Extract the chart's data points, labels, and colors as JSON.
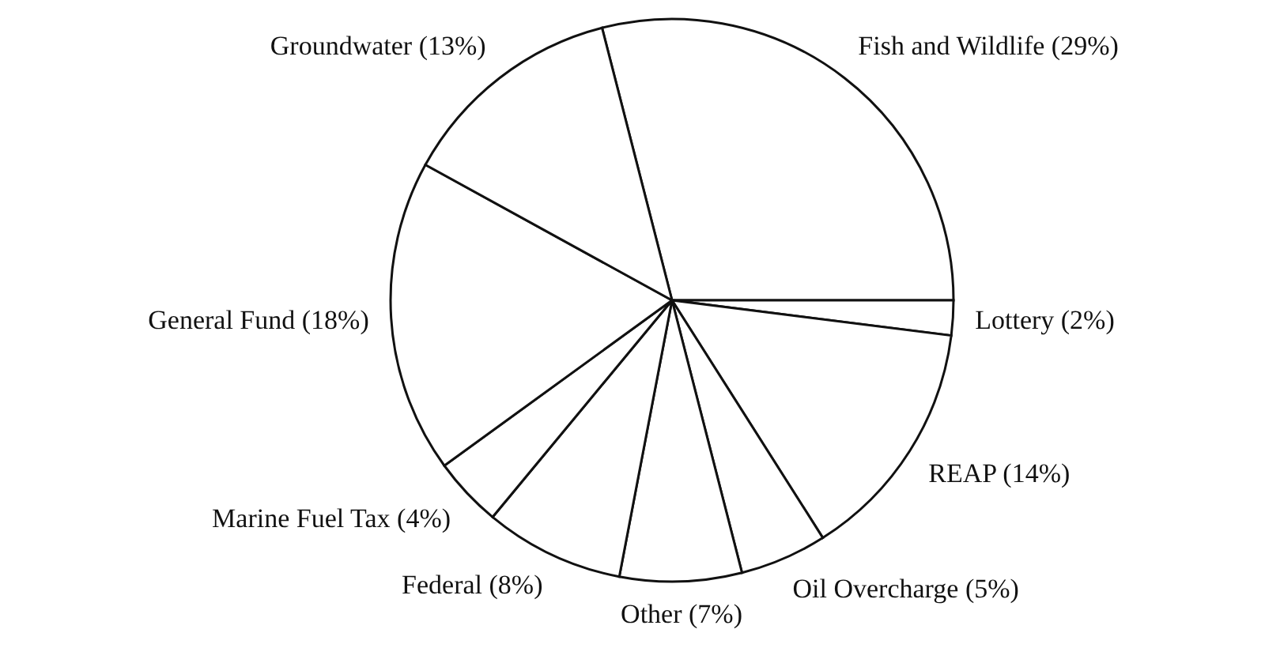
{
  "chart_data": {
    "type": "pie",
    "categories": [
      "Fish and Wildlife (29%)",
      "Lottery (2%)",
      "REAP (14%)",
      "Oil Overcharge (5%)",
      "Other (7%)",
      "Federal (8%)",
      "Marine Fuel Tax (4%)",
      "General Fund (18%)",
      "Groundwater (13%)"
    ],
    "values": [
      29,
      2,
      14,
      5,
      7,
      8,
      4,
      18,
      13
    ],
    "colors": [
      "#ffffff",
      "#ffffff",
      "#ffffff",
      "#ffffff",
      "#ffffff",
      "#ffffff",
      "#ffffff",
      "#ffffff",
      "#ffffff"
    ],
    "legend": false
  }
}
